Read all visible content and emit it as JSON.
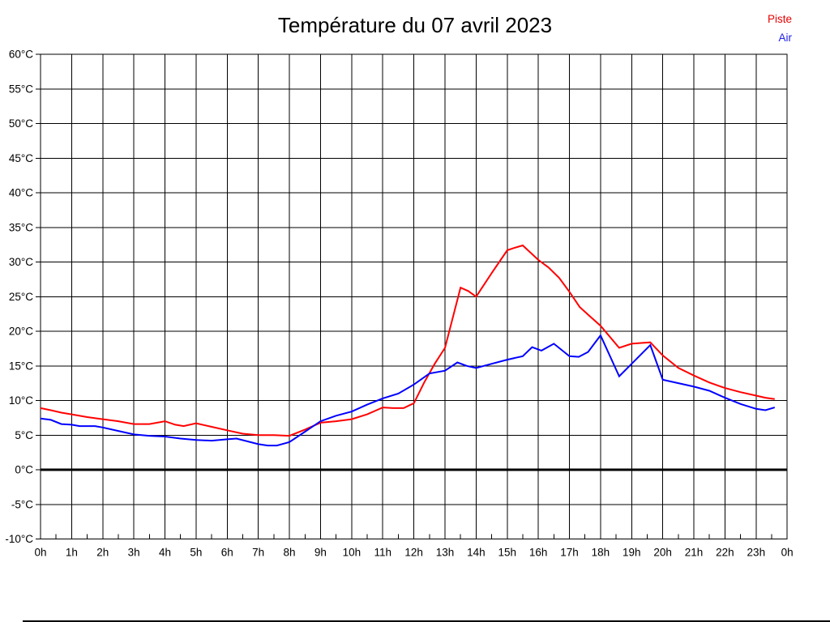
{
  "page": {
    "title": "Température du 07 avril 2023"
  },
  "legend": {
    "items": [
      {
        "label": "Piste",
        "color": "#e60000"
      },
      {
        "label": "Air",
        "color": "#2222e6"
      }
    ]
  },
  "chart_data": {
    "type": "line",
    "title": "Température du 07 avril 2023",
    "xlabel": "",
    "ylabel": "",
    "x_unit": "hour of day",
    "y_unit": "°C",
    "xlim": [
      0,
      24
    ],
    "ylim": [
      -10,
      60
    ],
    "grid": true,
    "grid_color": "#000000",
    "zero_line": {
      "value": 0,
      "stroke_width": 3,
      "color": "#000000"
    },
    "legend_position": "top-right",
    "x_tick_labels": [
      "0h",
      "1h",
      "2h",
      "3h",
      "4h",
      "5h",
      "6h",
      "7h",
      "8h",
      "9h",
      "10h",
      "11h",
      "12h",
      "13h",
      "14h",
      "15h",
      "16h",
      "17h",
      "18h",
      "19h",
      "20h",
      "21h",
      "22h",
      "23h",
      "0h"
    ],
    "y_tick_values": [
      60,
      55,
      50,
      45,
      40,
      35,
      30,
      25,
      20,
      15,
      10,
      5,
      0,
      -5,
      -10
    ],
    "y_tick_labels": [
      "60°C",
      "55°C",
      "50°C",
      "45°C",
      "40°C",
      "35°C",
      "30°C",
      "25°C",
      "20°C",
      "15°C",
      "10°C",
      "5°C",
      "0°C",
      "-5°C",
      "-10°C"
    ],
    "series": [
      {
        "name": "Piste",
        "color": "#ff0000",
        "points": [
          [
            0,
            8.9
          ],
          [
            0.33,
            8.6
          ],
          [
            0.67,
            8.25
          ],
          [
            1,
            8.0
          ],
          [
            1.5,
            7.6
          ],
          [
            2,
            7.3
          ],
          [
            2.5,
            7.0
          ],
          [
            3,
            6.6
          ],
          [
            3.5,
            6.6
          ],
          [
            4,
            7.0
          ],
          [
            4.33,
            6.5
          ],
          [
            4.6,
            6.3
          ],
          [
            5,
            6.7
          ],
          [
            5.5,
            6.2
          ],
          [
            6,
            5.7
          ],
          [
            6.5,
            5.2
          ],
          [
            7,
            5.0
          ],
          [
            7.5,
            5.0
          ],
          [
            8,
            4.9
          ],
          [
            8.5,
            5.8
          ],
          [
            9,
            6.8
          ],
          [
            9.5,
            7.0
          ],
          [
            10,
            7.3
          ],
          [
            10.5,
            8.0
          ],
          [
            11,
            9.0
          ],
          [
            11.33,
            8.9
          ],
          [
            11.67,
            8.9
          ],
          [
            12,
            9.6
          ],
          [
            12.33,
            12.6
          ],
          [
            12.67,
            15.3
          ],
          [
            13,
            17.6
          ],
          [
            13.5,
            26.3
          ],
          [
            13.75,
            25.8
          ],
          [
            14,
            25.0
          ],
          [
            14.5,
            28.4
          ],
          [
            15,
            31.7
          ],
          [
            15.2,
            32.0
          ],
          [
            15.5,
            32.4
          ],
          [
            16,
            30.3
          ],
          [
            16.33,
            29.2
          ],
          [
            16.67,
            27.7
          ],
          [
            17,
            25.7
          ],
          [
            17.33,
            23.5
          ],
          [
            17.6,
            22.4
          ],
          [
            18,
            20.8
          ],
          [
            18.6,
            17.6
          ],
          [
            19,
            18.2
          ],
          [
            19.3,
            18.3
          ],
          [
            19.6,
            18.4
          ],
          [
            20,
            16.5
          ],
          [
            20.5,
            14.7
          ],
          [
            21,
            13.6
          ],
          [
            21.5,
            12.6
          ],
          [
            22,
            11.8
          ],
          [
            22.5,
            11.2
          ],
          [
            23,
            10.7
          ],
          [
            23.3,
            10.4
          ],
          [
            23.6,
            10.2
          ]
        ]
      },
      {
        "name": "Air",
        "color": "#0000ff",
        "points": [
          [
            0,
            7.4
          ],
          [
            0.33,
            7.2
          ],
          [
            0.67,
            6.6
          ],
          [
            1,
            6.5
          ],
          [
            1.25,
            6.3
          ],
          [
            1.75,
            6.3
          ],
          [
            2,
            6.1
          ],
          [
            2.5,
            5.6
          ],
          [
            3,
            5.1
          ],
          [
            3.5,
            4.9
          ],
          [
            4,
            4.8
          ],
          [
            4.5,
            4.5
          ],
          [
            5,
            4.3
          ],
          [
            5.5,
            4.2
          ],
          [
            6,
            4.4
          ],
          [
            6.3,
            4.5
          ],
          [
            7,
            3.7
          ],
          [
            7.3,
            3.5
          ],
          [
            7.6,
            3.5
          ],
          [
            8,
            4.0
          ],
          [
            8.5,
            5.5
          ],
          [
            9,
            7.0
          ],
          [
            9.5,
            7.8
          ],
          [
            10,
            8.4
          ],
          [
            10.5,
            9.4
          ],
          [
            11,
            10.3
          ],
          [
            11.5,
            11.0
          ],
          [
            12,
            12.3
          ],
          [
            12.5,
            13.9
          ],
          [
            13,
            14.3
          ],
          [
            13.4,
            15.5
          ],
          [
            13.7,
            15.0
          ],
          [
            14,
            14.7
          ],
          [
            14.5,
            15.3
          ],
          [
            15,
            15.9
          ],
          [
            15.5,
            16.4
          ],
          [
            15.8,
            17.7
          ],
          [
            16.1,
            17.2
          ],
          [
            16.5,
            18.2
          ],
          [
            17,
            16.4
          ],
          [
            17.3,
            16.3
          ],
          [
            17.6,
            17.0
          ],
          [
            18,
            19.4
          ],
          [
            18.6,
            13.5
          ],
          [
            19,
            15.3
          ],
          [
            19.6,
            18.0
          ],
          [
            20,
            13.0
          ],
          [
            20.5,
            12.5
          ],
          [
            21,
            12.0
          ],
          [
            21.5,
            11.4
          ],
          [
            22,
            10.4
          ],
          [
            22.5,
            9.5
          ],
          [
            23,
            8.8
          ],
          [
            23.3,
            8.6
          ],
          [
            23.6,
            9.0
          ]
        ]
      }
    ]
  }
}
